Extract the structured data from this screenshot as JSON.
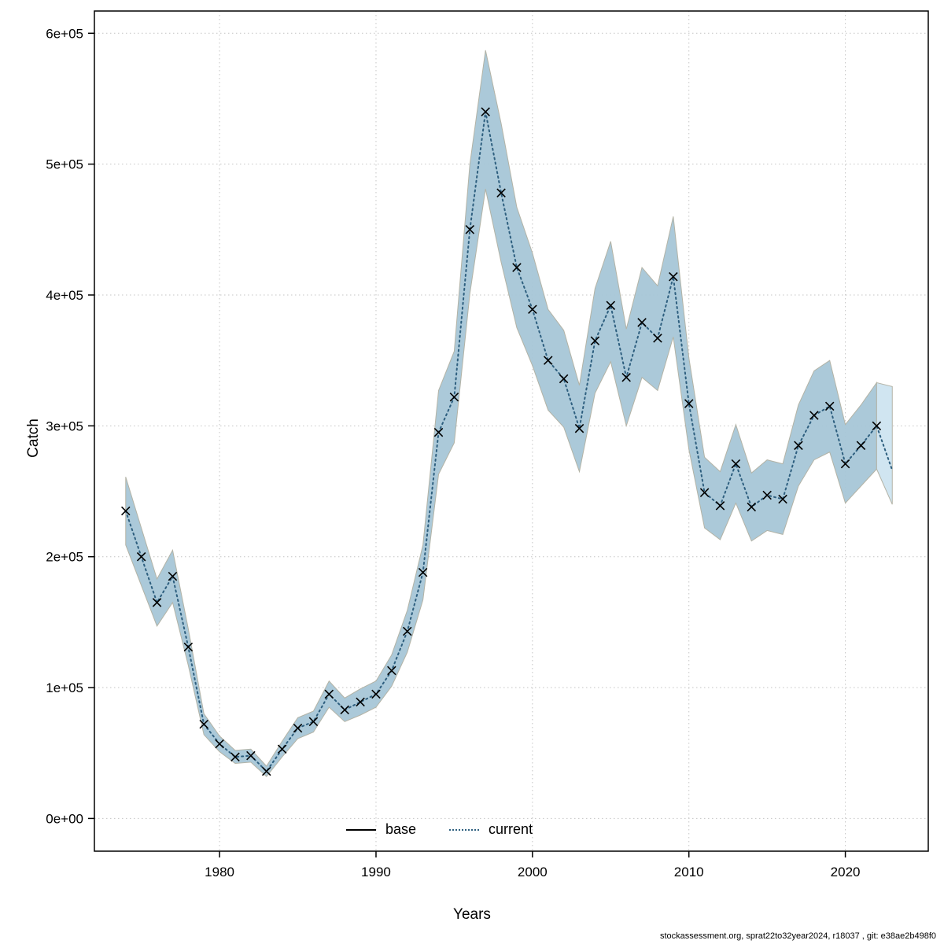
{
  "axes": {
    "x_title": "Years",
    "y_title": "Catch"
  },
  "legend": {
    "base_label": "base",
    "current_label": "current",
    "base_color": "#000000",
    "current_color": "#2e5f7f"
  },
  "footer": {
    "text": "stockassessment.org, sprat22to32year2024, r18037 , git: e38ae2b498f0"
  },
  "chart_data": {
    "type": "line",
    "title": "",
    "xlabel": "Years",
    "ylabel": "Catch",
    "xlim": [
      1972,
      2025.3
    ],
    "ylim": [
      -25000,
      617000
    ],
    "grid": true,
    "legend_position": "bottom-center",
    "xticks": [
      1980,
      1990,
      2000,
      2010,
      2020
    ],
    "yticks": [
      0,
      100000,
      200000,
      300000,
      400000,
      500000,
      600000
    ],
    "ytick_labels": [
      "0e+00",
      "1e+05",
      "2e+05",
      "3e+05",
      "4e+05",
      "5e+05",
      "6e+05"
    ],
    "x": [
      1974,
      1975,
      1976,
      1977,
      1978,
      1979,
      1980,
      1981,
      1982,
      1983,
      1984,
      1985,
      1986,
      1987,
      1988,
      1989,
      1990,
      1991,
      1992,
      1993,
      1994,
      1995,
      1996,
      1997,
      1998,
      1999,
      2000,
      2001,
      2002,
      2003,
      2004,
      2005,
      2006,
      2007,
      2008,
      2009,
      2010,
      2011,
      2012,
      2013,
      2014,
      2015,
      2016,
      2017,
      2018,
      2019,
      2020,
      2021,
      2022,
      2023
    ],
    "series": [
      {
        "name": "current",
        "style": "dotted",
        "color": "#2e5f7f",
        "values": [
          235000,
          200000,
          165000,
          185000,
          131000,
          72000,
          57000,
          47000,
          48000,
          36000,
          53000,
          69000,
          74000,
          95000,
          83000,
          89000,
          95000,
          113000,
          143000,
          188000,
          295000,
          322000,
          450000,
          540000,
          478000,
          421000,
          389000,
          350000,
          336000,
          298000,
          365000,
          392000,
          337000,
          379000,
          367000,
          414000,
          317000,
          249000,
          239000,
          271000,
          238000,
          247000,
          244000,
          285000,
          308000,
          315000,
          271000,
          285000,
          300000,
          266000
        ]
      }
    ],
    "markers": {
      "shape": "x",
      "color": "#000000",
      "last_marker_year": 2022
    },
    "band": {
      "upper": [
        261000,
        222000,
        183000,
        205000,
        145000,
        80000,
        63000,
        52000,
        53000,
        40000,
        59000,
        77000,
        82000,
        105000,
        92000,
        99000,
        105000,
        125000,
        159000,
        209000,
        327000,
        357000,
        500000,
        587000,
        531000,
        467000,
        432000,
        389000,
        373000,
        331000,
        405000,
        441000,
        374000,
        421000,
        407000,
        460000,
        352000,
        276000,
        265000,
        301000,
        264000,
        274000,
        271000,
        316000,
        342000,
        350000,
        301000,
        316000,
        333000,
        330000
      ],
      "lower": [
        209000,
        178000,
        147000,
        165000,
        117000,
        64000,
        51000,
        42000,
        43000,
        32000,
        47000,
        61000,
        66000,
        85000,
        74000,
        79000,
        85000,
        101000,
        127000,
        167000,
        263000,
        287000,
        401000,
        481000,
        425000,
        375000,
        346000,
        312000,
        299000,
        265000,
        325000,
        349000,
        300000,
        337000,
        327000,
        368000,
        282000,
        222000,
        213000,
        241000,
        212000,
        220000,
        217000,
        254000,
        274000,
        280000,
        241000,
        254000,
        267000,
        240000
      ]
    },
    "forecast_start_year": 2022,
    "colors": {
      "band": "#a6c6d7",
      "band_forecast": "#cde4f0",
      "band_edge": "#b3b3a6",
      "line": "#2e5f7f",
      "marker": "#000000",
      "grid": "#c4c4c4",
      "box": "#000000"
    }
  }
}
